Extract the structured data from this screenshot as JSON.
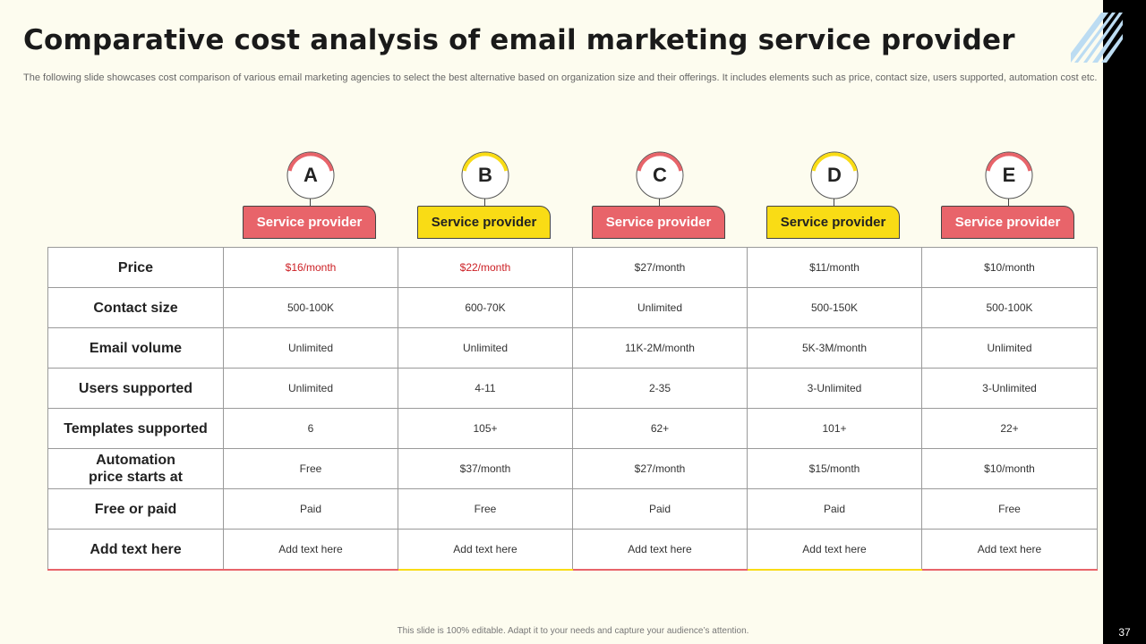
{
  "title": "Comparative cost analysis of email marketing service provider",
  "subtitle": "The following slide showcases cost comparison of various email marketing agencies to select the best alternative based on organization size and their offerings. It includes elements such as price, contact size, users supported, automation cost etc.",
  "footer": "This slide is 100% editable.  Adapt it to your needs and capture your audience’s attention.",
  "page_number": "37",
  "colors": {
    "red": "#e8646a",
    "yellow": "#f9dc15",
    "highlight_text": "#cc1f24",
    "background": "#fdfcef"
  },
  "providers": [
    {
      "letter": "A",
      "label": "Service provider",
      "color": "red"
    },
    {
      "letter": "B",
      "label": "Service provider",
      "color": "yellow"
    },
    {
      "letter": "C",
      "label": "Service provider",
      "color": "red"
    },
    {
      "letter": "D",
      "label": "Service provider",
      "color": "yellow"
    },
    {
      "letter": "E",
      "label": "Service provider",
      "color": "red"
    }
  ],
  "rows": [
    {
      "label": "Price",
      "values": [
        "$16/month",
        "$22/month",
        "$27/month",
        "$11/month",
        "$10/month"
      ]
    },
    {
      "label": "Contact size",
      "values": [
        "500-100K",
        "600-70K",
        "Unlimited",
        "500-150K",
        "500-100K"
      ]
    },
    {
      "label": "Email volume",
      "values": [
        "Unlimited",
        "Unlimited",
        "11K-2M/month",
        "5K-3M/month",
        "Unlimited"
      ]
    },
    {
      "label": "Users supported",
      "values": [
        "Unlimited",
        "4-11",
        "2-35",
        "3-Unlimited",
        "3-Unlimited"
      ]
    },
    {
      "label": "Templates supported",
      "values": [
        "6",
        "105+",
        "62+",
        "101+",
        "22+"
      ]
    },
    {
      "label": "Automation\nprice starts at",
      "values": [
        "Free",
        "$37/month",
        "$27/month",
        "$15/month",
        "$10/month"
      ]
    },
    {
      "label": "Free or paid",
      "values": [
        "Paid",
        "Free",
        "Paid",
        "Paid",
        "Free"
      ]
    },
    {
      "label": "Add text here",
      "values": [
        "Add text here",
        "Add text here",
        "Add text here",
        "Add text here",
        "Add text here"
      ]
    }
  ]
}
